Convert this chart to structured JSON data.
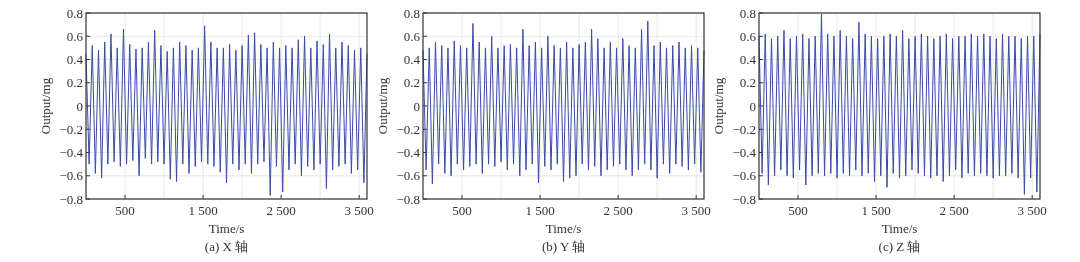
{
  "chart_data": [
    {
      "type": "line",
      "title": "(a) X 轴",
      "xlabel": "Time/s",
      "ylabel": "Output/mg",
      "grid": true,
      "xlim": [
        0,
        3600
      ],
      "ylim": [
        -0.8,
        0.8
      ],
      "xticks": [
        {
          "value": 500,
          "label": "500"
        },
        {
          "value": 1000,
          "label": null
        },
        {
          "value": 1500,
          "label": "1 500"
        },
        {
          "value": 2000,
          "label": null
        },
        {
          "value": 2500,
          "label": "2 500"
        },
        {
          "value": 3000,
          "label": null
        },
        {
          "value": 3500,
          "label": "3 500"
        }
      ],
      "yticks": [
        {
          "value": -0.8,
          "label": "−0.8"
        },
        {
          "value": -0.6,
          "label": "−0.6"
        },
        {
          "value": -0.4,
          "label": "−0.4"
        },
        {
          "value": -0.2,
          "label": "−0.2"
        },
        0,
        0.2,
        0.4,
        0.6,
        0.8
      ],
      "x": [
        0,
        40,
        80,
        120,
        160,
        200,
        240,
        280,
        320,
        360,
        400,
        440,
        480,
        520,
        560,
        600,
        640,
        680,
        720,
        760,
        800,
        840,
        880,
        920,
        960,
        1000,
        1040,
        1080,
        1120,
        1160,
        1200,
        1240,
        1280,
        1320,
        1360,
        1400,
        1440,
        1480,
        1520,
        1560,
        1600,
        1640,
        1680,
        1720,
        1760,
        1800,
        1840,
        1880,
        1920,
        1960,
        2000,
        2040,
        2080,
        2120,
        2160,
        2200,
        2240,
        2280,
        2320,
        2360,
        2400,
        2440,
        2480,
        2520,
        2560,
        2600,
        2640,
        2680,
        2720,
        2760,
        2800,
        2840,
        2880,
        2920,
        2960,
        3000,
        3040,
        3080,
        3120,
        3160,
        3200,
        3240,
        3280,
        3320,
        3360,
        3400,
        3440,
        3480,
        3520,
        3560,
        3600
      ],
      "series": [
        {
          "color": "#3a4aa8",
          "values": [
            0.45,
            -0.5,
            0.52,
            -0.58,
            0.48,
            -0.62,
            0.55,
            -0.5,
            0.62,
            -0.48,
            0.5,
            -0.52,
            0.66,
            -0.5,
            0.53,
            -0.47,
            0.49,
            -0.6,
            0.5,
            -0.45,
            0.55,
            -0.5,
            0.65,
            -0.48,
            0.52,
            -0.5,
            0.47,
            -0.63,
            0.5,
            -0.65,
            0.55,
            -0.5,
            0.52,
            -0.58,
            0.48,
            -0.52,
            0.5,
            -0.48,
            0.69,
            -0.5,
            0.55,
            -0.52,
            0.5,
            -0.57,
            0.5,
            -0.66,
            0.53,
            -0.5,
            0.48,
            -0.55,
            0.52,
            -0.5,
            0.61,
            -0.58,
            0.63,
            -0.5,
            0.53,
            -0.48,
            0.5,
            -0.77,
            0.55,
            -0.52,
            0.5,
            -0.74,
            0.52,
            -0.55,
            0.5,
            -0.5,
            0.57,
            -0.6,
            0.6,
            -0.52,
            0.5,
            -0.55,
            0.56,
            -0.5,
            0.53,
            -0.71,
            0.62,
            -0.55,
            0.5,
            -0.52,
            0.55,
            -0.5,
            0.52,
            -0.58,
            0.48,
            -0.55,
            0.5,
            -0.66,
            0.45
          ]
        }
      ]
    },
    {
      "type": "line",
      "title": "(b) Y 轴",
      "xlabel": "Time/s",
      "ylabel": "Output/mg",
      "grid": true,
      "xlim": [
        0,
        3600
      ],
      "ylim": [
        -0.8,
        0.8
      ],
      "xticks": [
        {
          "value": 500,
          "label": "500"
        },
        {
          "value": 1000,
          "label": null
        },
        {
          "value": 1500,
          "label": "1 500"
        },
        {
          "value": 2000,
          "label": null
        },
        {
          "value": 2500,
          "label": "2 500"
        },
        {
          "value": 3000,
          "label": null
        },
        {
          "value": 3500,
          "label": "3 500"
        }
      ],
      "yticks": [
        {
          "value": -0.8,
          "label": "−0.8"
        },
        {
          "value": -0.6,
          "label": "−0.6"
        },
        {
          "value": -0.4,
          "label": "−0.4"
        },
        {
          "value": -0.2,
          "label": "−0.2"
        },
        0,
        0.2,
        0.4,
        0.6,
        0.8
      ],
      "x": [
        0,
        40,
        80,
        120,
        160,
        200,
        240,
        280,
        320,
        360,
        400,
        440,
        480,
        520,
        560,
        600,
        640,
        680,
        720,
        760,
        800,
        840,
        880,
        920,
        960,
        1000,
        1040,
        1080,
        1120,
        1160,
        1200,
        1240,
        1280,
        1320,
        1360,
        1400,
        1440,
        1480,
        1520,
        1560,
        1600,
        1640,
        1680,
        1720,
        1760,
        1800,
        1840,
        1880,
        1920,
        1960,
        2000,
        2040,
        2080,
        2120,
        2160,
        2200,
        2240,
        2280,
        2320,
        2360,
        2400,
        2440,
        2480,
        2520,
        2560,
        2600,
        2640,
        2680,
        2720,
        2760,
        2800,
        2840,
        2880,
        2920,
        2960,
        3000,
        3040,
        3080,
        3120,
        3160,
        3200,
        3240,
        3280,
        3320,
        3360,
        3400,
        3440,
        3480,
        3520,
        3560,
        3600
      ],
      "series": [
        {
          "color": "#3a4aa8",
          "values": [
            0.48,
            -0.55,
            0.5,
            -0.67,
            0.55,
            -0.5,
            0.52,
            -0.58,
            0.5,
            -0.6,
            0.56,
            -0.5,
            0.52,
            -0.55,
            0.5,
            -0.52,
            0.71,
            -0.5,
            0.55,
            -0.58,
            0.5,
            -0.5,
            0.6,
            -0.52,
            0.5,
            -0.48,
            0.52,
            -0.55,
            0.53,
            -0.5,
            0.5,
            -0.6,
            0.66,
            -0.55,
            0.52,
            -0.5,
            0.55,
            -0.66,
            0.5,
            -0.52,
            0.6,
            -0.55,
            0.52,
            -0.5,
            0.5,
            -0.65,
            0.55,
            -0.62,
            0.5,
            -0.6,
            0.53,
            -0.5,
            0.55,
            -0.55,
            0.66,
            -0.52,
            0.58,
            -0.6,
            0.5,
            -0.55,
            0.55,
            -0.52,
            0.5,
            -0.5,
            0.58,
            -0.55,
            0.52,
            -0.6,
            0.5,
            -0.55,
            0.66,
            -0.5,
            0.73,
            -0.55,
            0.52,
            -0.62,
            0.55,
            -0.5,
            0.5,
            -0.58,
            0.52,
            -0.5,
            0.55,
            -0.52,
            0.5,
            -0.55,
            0.52,
            -0.5,
            0.5,
            -0.57,
            0.48
          ]
        }
      ]
    },
    {
      "type": "line",
      "title": "(c) Z 轴",
      "xlabel": "Time/s",
      "ylabel": "Output/mg",
      "grid": true,
      "xlim": [
        0,
        3600
      ],
      "ylim": [
        -0.8,
        0.8
      ],
      "xticks": [
        {
          "value": 500,
          "label": "500"
        },
        {
          "value": 1000,
          "label": null
        },
        {
          "value": 1500,
          "label": "1 500"
        },
        {
          "value": 2000,
          "label": null
        },
        {
          "value": 2500,
          "label": "2 500"
        },
        {
          "value": 3000,
          "label": null
        },
        {
          "value": 3500,
          "label": "3 500"
        }
      ],
      "yticks": [
        {
          "value": -0.8,
          "label": "−0.8"
        },
        {
          "value": -0.6,
          "label": "−0.6"
        },
        {
          "value": -0.4,
          "label": "−0.4"
        },
        {
          "value": -0.2,
          "label": "−0.2"
        },
        0,
        0.2,
        0.4,
        0.6,
        0.8
      ],
      "x": [
        0,
        40,
        80,
        120,
        160,
        200,
        240,
        280,
        320,
        360,
        400,
        440,
        480,
        520,
        560,
        600,
        640,
        680,
        720,
        760,
        800,
        840,
        880,
        920,
        960,
        1000,
        1040,
        1080,
        1120,
        1160,
        1200,
        1240,
        1280,
        1320,
        1360,
        1400,
        1440,
        1480,
        1520,
        1560,
        1600,
        1640,
        1680,
        1720,
        1760,
        1800,
        1840,
        1880,
        1920,
        1960,
        2000,
        2040,
        2080,
        2120,
        2160,
        2200,
        2240,
        2280,
        2320,
        2360,
        2400,
        2440,
        2480,
        2520,
        2560,
        2600,
        2640,
        2680,
        2720,
        2760,
        2800,
        2840,
        2880,
        2920,
        2960,
        3000,
        3040,
        3080,
        3120,
        3160,
        3200,
        3240,
        3280,
        3320,
        3360,
        3400,
        3440,
        3480,
        3520,
        3560,
        3600
      ],
      "series": [
        {
          "color": "#3a4aa8",
          "values": [
            0.6,
            -0.58,
            0.62,
            -0.68,
            0.58,
            -0.6,
            0.6,
            -0.55,
            0.65,
            -0.6,
            0.58,
            -0.62,
            0.6,
            -0.55,
            0.62,
            -0.68,
            0.58,
            -0.6,
            0.6,
            -0.58,
            0.79,
            -0.6,
            0.62,
            -0.58,
            0.6,
            -0.62,
            0.65,
            -0.58,
            0.6,
            -0.6,
            0.58,
            -0.55,
            0.72,
            -0.6,
            0.62,
            -0.58,
            0.6,
            -0.65,
            0.58,
            -0.6,
            0.6,
            -0.7,
            0.62,
            -0.58,
            0.6,
            -0.62,
            0.65,
            -0.6,
            0.58,
            -0.55,
            0.6,
            -0.58,
            0.62,
            -0.6,
            0.6,
            -0.62,
            0.58,
            -0.6,
            0.6,
            -0.65,
            0.62,
            -0.6,
            0.58,
            -0.55,
            0.6,
            -0.62,
            0.6,
            -0.58,
            0.62,
            -0.6,
            0.6,
            -0.58,
            0.62,
            -0.6,
            0.6,
            -0.62,
            0.58,
            -0.6,
            0.62,
            -0.6,
            0.6,
            -0.58,
            0.6,
            -0.62,
            0.58,
            -0.76,
            0.6,
            -0.62,
            0.6,
            -0.74,
            0.62
          ]
        }
      ]
    }
  ]
}
